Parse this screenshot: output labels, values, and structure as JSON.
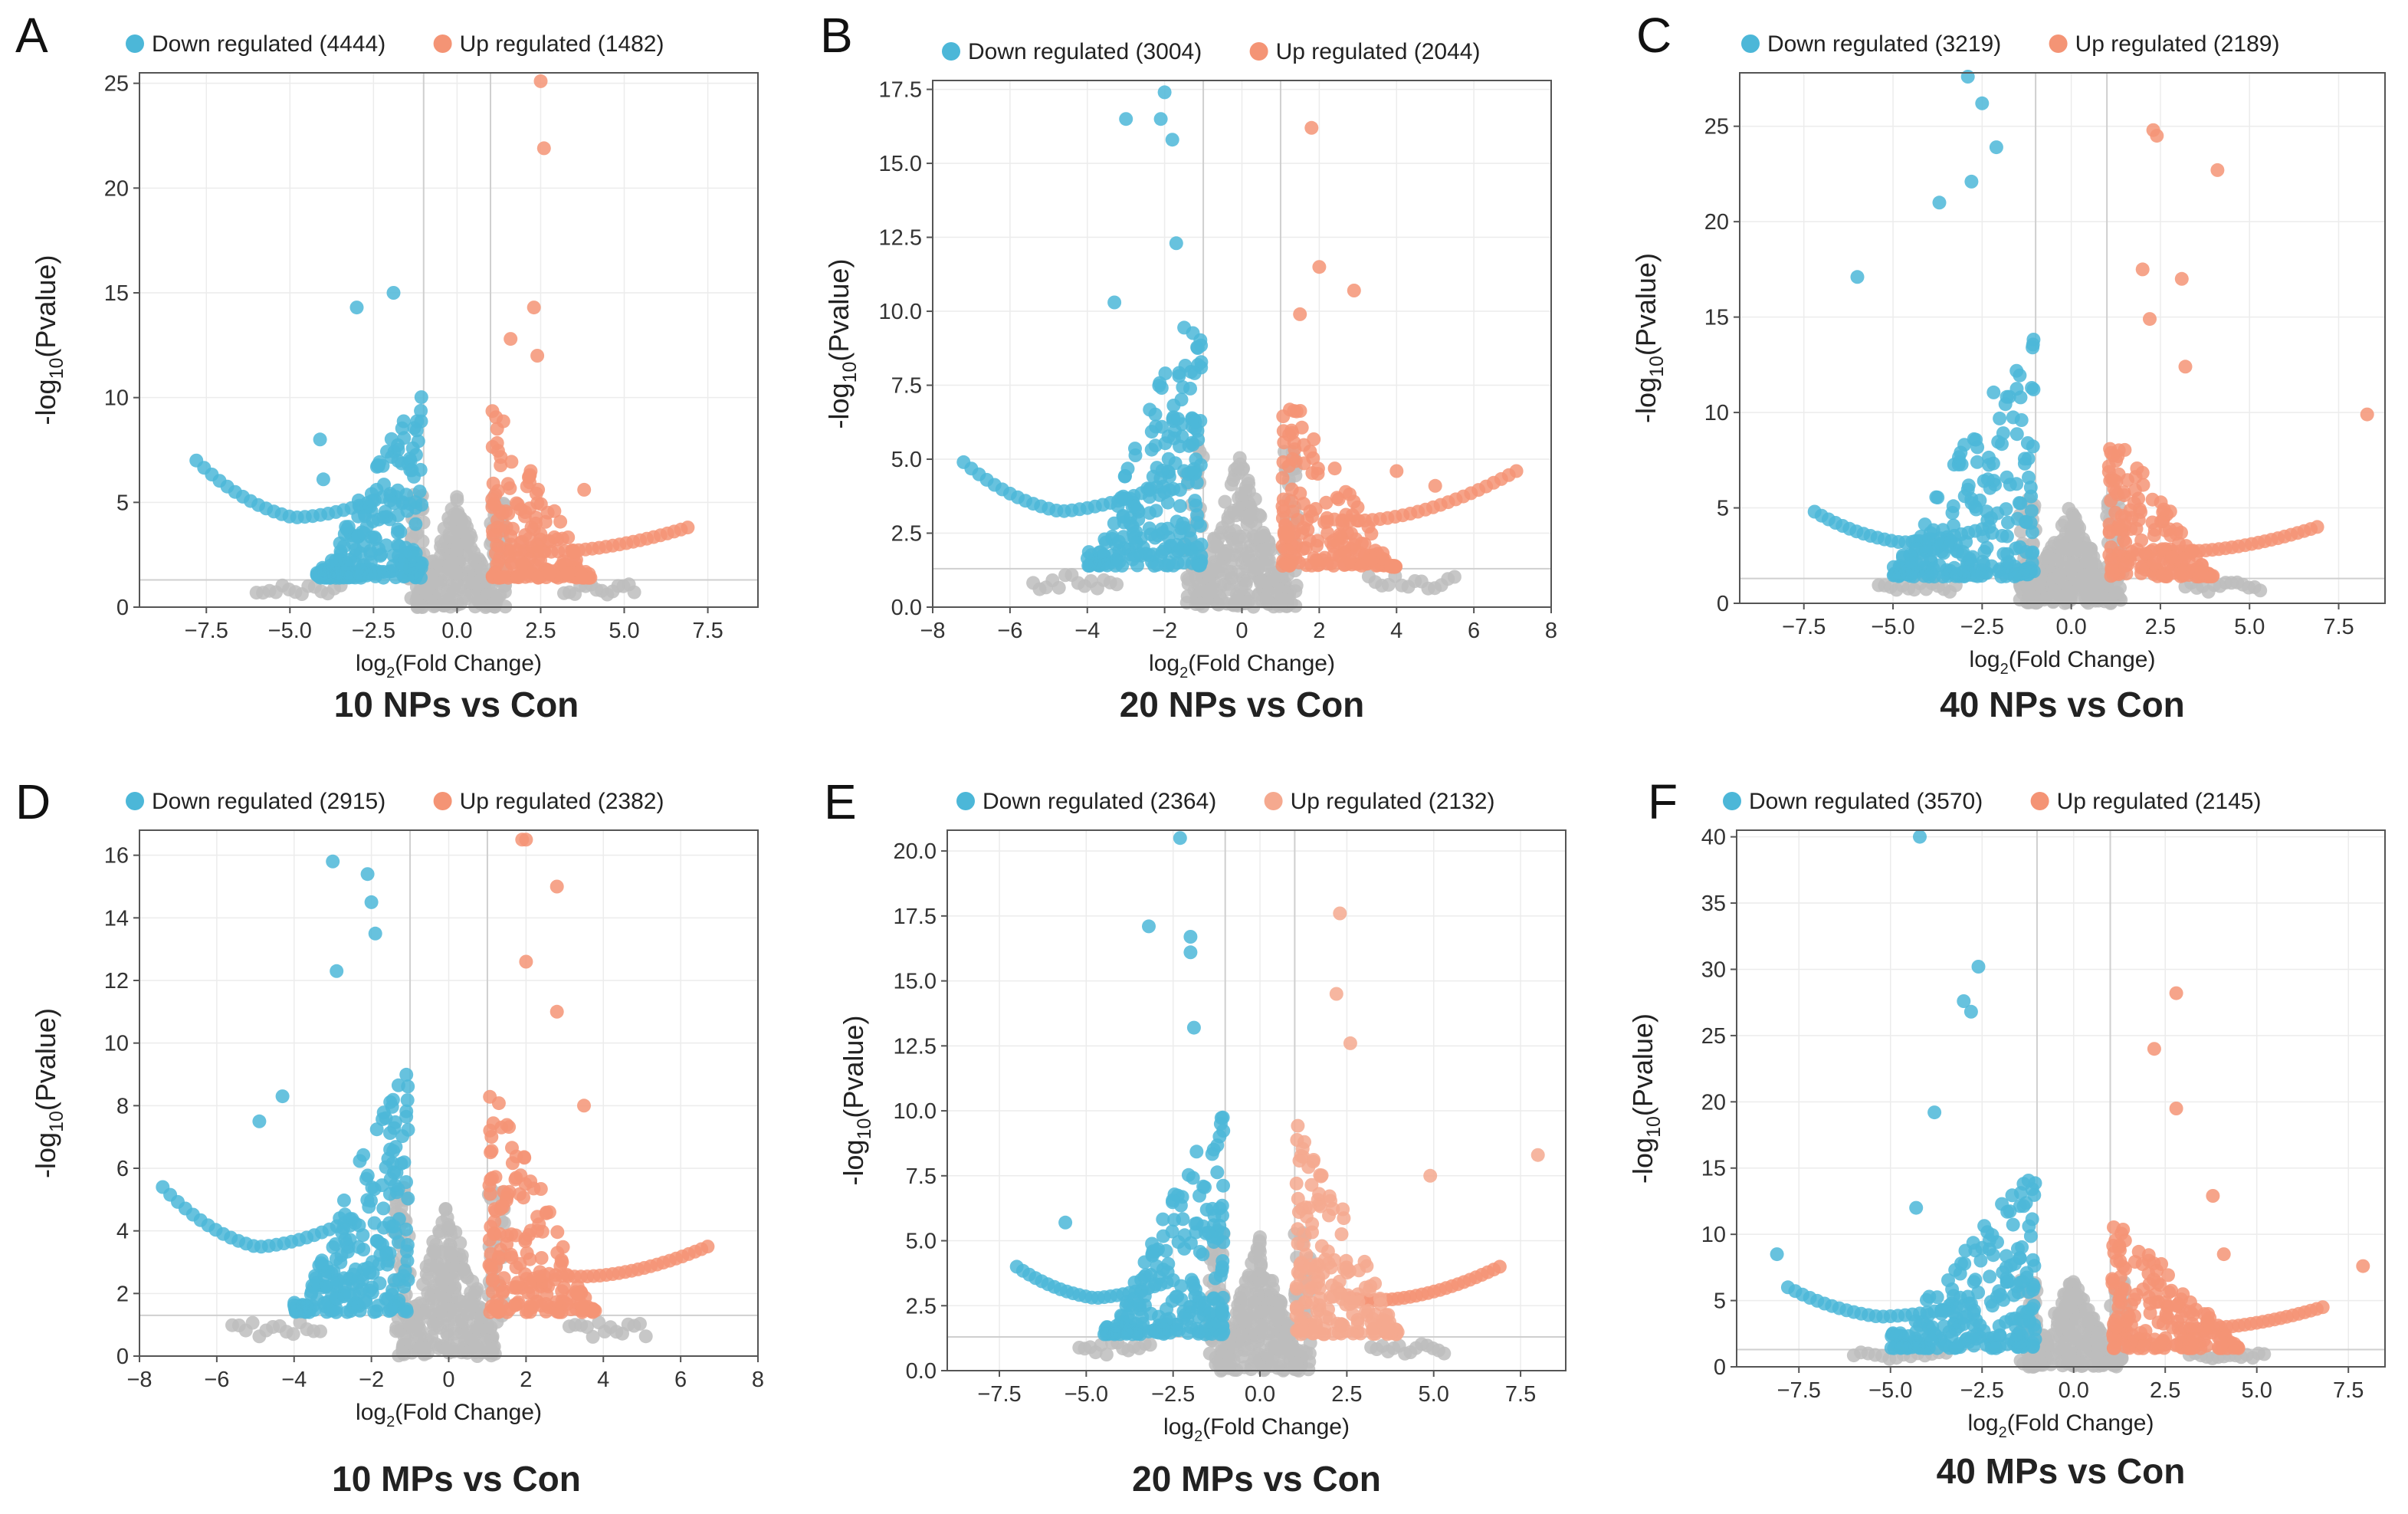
{
  "colors": {
    "down": "#4cb7d8",
    "up": "#f49475",
    "ns": "#bdbdbd"
  },
  "chart_data": [
    {
      "type": "scatter",
      "panel": "A",
      "caption": "10 NPs vs Con",
      "title": "",
      "xlabel": "log",
      "xlabel_sub": "2",
      "xlabel_tail": "(Fold Change)",
      "ylabel": "-log",
      "ylabel_sub": "10",
      "ylabel_tail": "(Pvalue)",
      "legend": [
        {
          "label": "Down regulated (4444)",
          "color": "#4cb7d8"
        },
        {
          "label": "Up regulated (1482)",
          "color": "#f49475"
        }
      ],
      "legend_position": "top",
      "xlim": [
        -9.5,
        9.0
      ],
      "ylim": [
        0,
        25.5
      ],
      "xticks": [
        -7.5,
        -5.0,
        -2.5,
        0.0,
        2.5,
        5.0,
        7.5
      ],
      "xtick_labels": [
        "-7.5",
        "-5.0",
        "-2.5",
        "0.0",
        "2.5",
        "5.0",
        "7.5"
      ],
      "yticks": [
        0,
        5,
        10,
        15,
        20,
        25
      ],
      "ytick_labels": [
        "0",
        "5",
        "10",
        "15",
        "20",
        "25"
      ],
      "fc_threshold": 1,
      "p_line": 1.3,
      "down": {
        "wing_from": -7.8,
        "wing_to": -2.0,
        "wing_max": 7,
        "cloud_top": 10.5,
        "cloud_xmin": -4.2
      },
      "up": {
        "wing_from": 1.8,
        "wing_to": 6.9,
        "wing_max": 3.8,
        "cloud_top": 9.5,
        "cloud_xmax": 4.0
      },
      "outliers": [
        [
          2.5,
          25.1,
          "up"
        ],
        [
          2.6,
          21.9,
          "up"
        ],
        [
          -1.9,
          15.0,
          "down"
        ],
        [
          -3.0,
          14.3,
          "down"
        ],
        [
          2.3,
          14.3,
          "up"
        ],
        [
          1.6,
          12.8,
          "up"
        ],
        [
          2.4,
          12.0,
          "up"
        ],
        [
          -4.1,
          8.0,
          "down"
        ],
        [
          -4.0,
          6.1,
          "down"
        ],
        [
          3.8,
          5.6,
          "up"
        ]
      ]
    },
    {
      "type": "scatter",
      "panel": "B",
      "caption": "20 NPs vs Con",
      "title": "",
      "xlabel": "log",
      "xlabel_sub": "2",
      "xlabel_tail": "(Fold Change)",
      "ylabel": "-log",
      "ylabel_sub": "10",
      "ylabel_tail": "(Pvalue)",
      "legend": [
        {
          "label": "Down regulated (3004)",
          "color": "#4cb7d8"
        },
        {
          "label": "Up regulated (2044)",
          "color": "#f49475"
        }
      ],
      "legend_position": "top",
      "xlim": [
        -8,
        8
      ],
      "ylim": [
        0,
        17.8
      ],
      "xticks": [
        -8,
        -6,
        -4,
        -2,
        0,
        2,
        4,
        6,
        8
      ],
      "xtick_labels": [
        "-8",
        "-6",
        "-4",
        "-2",
        "0",
        "2",
        "4",
        "6",
        "8"
      ],
      "yticks": [
        0,
        2.5,
        5.0,
        7.5,
        10.0,
        12.5,
        15.0,
        17.5
      ],
      "ytick_labels": [
        "0.0",
        "2.5",
        "5.0",
        "7.5",
        "10.0",
        "12.5",
        "15.0",
        "17.5"
      ],
      "fc_threshold": 1,
      "p_line": 1.3,
      "down": {
        "wing_from": -7.2,
        "wing_to": -2.2,
        "wing_max": 4.9,
        "cloud_top": 10.5,
        "cloud_xmin": -4.0
      },
      "up": {
        "wing_from": 2.2,
        "wing_to": 7.1,
        "wing_max": 4.6,
        "cloud_top": 7.5,
        "cloud_xmax": 4.0
      },
      "outliers": [
        [
          -2.0,
          17.4,
          "down"
        ],
        [
          -3.0,
          16.5,
          "down"
        ],
        [
          -2.1,
          16.5,
          "down"
        ],
        [
          -1.8,
          15.8,
          "down"
        ],
        [
          1.8,
          16.2,
          "up"
        ],
        [
          -1.7,
          12.3,
          "down"
        ],
        [
          2.0,
          11.5,
          "up"
        ],
        [
          2.9,
          10.7,
          "up"
        ],
        [
          1.5,
          9.9,
          "up"
        ],
        [
          -3.3,
          10.3,
          "down"
        ],
        [
          4.0,
          4.6,
          "up"
        ],
        [
          5.0,
          4.1,
          "up"
        ]
      ]
    },
    {
      "type": "scatter",
      "panel": "C",
      "caption": "40 NPs vs Con",
      "title": "",
      "xlabel": "log",
      "xlabel_sub": "2",
      "xlabel_tail": "(Fold Change)",
      "ylabel": "-log",
      "ylabel_sub": "10",
      "ylabel_tail": "(Pvalue)",
      "legend": [
        {
          "label": "Down regulated (3219)",
          "color": "#4cb7d8"
        },
        {
          "label": "Up regulated (2189)",
          "color": "#f49475"
        }
      ],
      "legend_position": "top",
      "xlim": [
        -9.3,
        8.8
      ],
      "ylim": [
        0,
        27.8
      ],
      "xticks": [
        -7.5,
        -5.0,
        -2.5,
        0.0,
        2.5,
        5.0,
        7.5
      ],
      "xtick_labels": [
        "-7.5",
        "-5.0",
        "-2.5",
        "0.0",
        "2.5",
        "5.0",
        "7.5"
      ],
      "yticks": [
        0,
        5,
        10,
        15,
        20,
        25
      ],
      "ytick_labels": [
        "0",
        "5",
        "10",
        "15",
        "20",
        "25"
      ],
      "fc_threshold": 1,
      "p_line": 1.3,
      "down": {
        "wing_from": -7.2,
        "wing_to": -2.3,
        "wing_max": 4.8,
        "cloud_top": 14.0,
        "cloud_xmin": -5.0
      },
      "up": {
        "wing_from": 2.3,
        "wing_to": 6.9,
        "wing_max": 4.0,
        "cloud_top": 9.0,
        "cloud_xmax": 4.0
      },
      "outliers": [
        [
          -2.9,
          27.6,
          "down"
        ],
        [
          -2.5,
          26.2,
          "down"
        ],
        [
          2.3,
          24.8,
          "up"
        ],
        [
          2.4,
          24.5,
          "up"
        ],
        [
          -2.1,
          23.9,
          "down"
        ],
        [
          4.1,
          22.7,
          "up"
        ],
        [
          -2.8,
          22.1,
          "down"
        ],
        [
          -3.7,
          21.0,
          "down"
        ],
        [
          -6.0,
          17.1,
          "down"
        ],
        [
          2.0,
          17.5,
          "up"
        ],
        [
          3.1,
          17.0,
          "up"
        ],
        [
          8.3,
          9.9,
          "up"
        ],
        [
          2.2,
          14.9,
          "up"
        ],
        [
          3.2,
          12.4,
          "up"
        ]
      ]
    },
    {
      "type": "scatter",
      "panel": "D",
      "caption": "10 MPs vs Con",
      "title": "",
      "xlabel": "log",
      "xlabel_sub": "2",
      "xlabel_tail": "(Fold Change)",
      "ylabel": "-log",
      "ylabel_sub": "10",
      "ylabel_tail": "(Pvalue)",
      "legend": [
        {
          "label": "Down regulated (2915)",
          "color": "#4cb7d8"
        },
        {
          "label": "Up regulated (2382)",
          "color": "#f49475"
        }
      ],
      "legend_position": "top",
      "xlim": [
        -8,
        8
      ],
      "ylim": [
        0,
        16.8
      ],
      "xticks": [
        -8,
        -6,
        -4,
        -2,
        0,
        2,
        4,
        6,
        8
      ],
      "xtick_labels": [
        "-8",
        "-6",
        "-4",
        "-2",
        "0",
        "2",
        "4",
        "6",
        "8"
      ],
      "yticks": [
        0,
        2,
        4,
        6,
        8,
        10,
        12,
        14,
        16
      ],
      "ytick_labels": [
        "0",
        "2",
        "4",
        "6",
        "8",
        "10",
        "12",
        "14",
        "16"
      ],
      "fc_threshold": 1,
      "p_line": 1.3,
      "down": {
        "wing_from": -7.4,
        "wing_to": -2.5,
        "wing_max": 5.4,
        "cloud_top": 9.5,
        "cloud_xmin": -4.0
      },
      "up": {
        "wing_from": 2.6,
        "wing_to": 6.7,
        "wing_max": 3.5,
        "cloud_top": 8.5,
        "cloud_xmax": 3.8
      },
      "outliers": [
        [
          1.9,
          16.5,
          "up"
        ],
        [
          2.0,
          16.5,
          "up"
        ],
        [
          -3.0,
          15.8,
          "down"
        ],
        [
          -2.1,
          15.4,
          "down"
        ],
        [
          2.8,
          15.0,
          "up"
        ],
        [
          -2.0,
          14.5,
          "down"
        ],
        [
          -1.9,
          13.5,
          "down"
        ],
        [
          -2.9,
          12.3,
          "down"
        ],
        [
          2.0,
          12.6,
          "up"
        ],
        [
          -4.3,
          8.3,
          "down"
        ],
        [
          -4.9,
          7.5,
          "down"
        ],
        [
          3.5,
          8.0,
          "up"
        ],
        [
          2.8,
          11.0,
          "up"
        ]
      ]
    },
    {
      "type": "scatter",
      "panel": "E",
      "caption": "20 MPs vs Con",
      "title": "",
      "xlabel": "log",
      "xlabel_sub": "2",
      "xlabel_tail": "(Fold Change)",
      "ylabel": "-log",
      "ylabel_sub": "10",
      "ylabel_tail": "(Pvalue)",
      "legend": [
        {
          "label": "Down regulated (2364)",
          "color": "#4cb7d8"
        },
        {
          "label": "Up regulated (2132)",
          "color": "#f5a98f"
        }
      ],
      "legend_position": "top",
      "xlim": [
        -9.0,
        8.8
      ],
      "ylim": [
        0,
        20.8
      ],
      "xticks": [
        -7.5,
        -5.0,
        -2.5,
        0.0,
        2.5,
        5.0,
        7.5
      ],
      "xtick_labels": [
        "-7.5",
        "-5.0",
        "-2.5",
        "0.0",
        "2.5",
        "5.0",
        "7.5"
      ],
      "yticks": [
        0,
        2.5,
        5.0,
        7.5,
        10.0,
        12.5,
        15.0,
        17.5,
        20.0
      ],
      "ytick_labels": [
        "0.0",
        "2.5",
        "5.0",
        "7.5",
        "10.0",
        "12.5",
        "15.0",
        "17.5",
        "20.0"
      ],
      "fc_threshold": 1,
      "p_line": 1.3,
      "down": {
        "wing_from": -7.0,
        "wing_to": -2.5,
        "wing_max": 4.0,
        "cloud_top": 10.0,
        "cloud_xmin": -4.5
      },
      "up": {
        "wing_from": 2.6,
        "wing_to": 6.9,
        "wing_max": 4.0,
        "cloud_top": 9.5,
        "cloud_xmax": 4.0
      },
      "outliers": [
        [
          -2.3,
          20.5,
          "down"
        ],
        [
          2.3,
          17.6,
          "up"
        ],
        [
          -3.2,
          17.1,
          "down"
        ],
        [
          -2.0,
          16.7,
          "down"
        ],
        [
          -2.0,
          16.1,
          "down"
        ],
        [
          2.2,
          14.5,
          "up"
        ],
        [
          -1.9,
          13.2,
          "down"
        ],
        [
          2.6,
          12.6,
          "up"
        ],
        [
          8.0,
          8.3,
          "up"
        ],
        [
          4.9,
          7.5,
          "up"
        ],
        [
          -5.6,
          5.7,
          "down"
        ]
      ]
    },
    {
      "type": "scatter",
      "panel": "F",
      "caption": "40 MPs vs Con",
      "title": "",
      "xlabel": "log",
      "xlabel_sub": "2",
      "xlabel_tail": "(Fold Change)",
      "ylabel": "-log",
      "ylabel_sub": "10",
      "ylabel_tail": "(Pvalue)",
      "legend": [
        {
          "label": "Down regulated (3570)",
          "color": "#4cb7d8"
        },
        {
          "label": "Up regulated (2145)",
          "color": "#f49475"
        }
      ],
      "legend_position": "top",
      "xlim": [
        -9.2,
        8.5
      ],
      "ylim": [
        0,
        40.5
      ],
      "xticks": [
        -7.5,
        -5.0,
        -2.5,
        0.0,
        2.5,
        5.0,
        7.5
      ],
      "xtick_labels": [
        "-7.5",
        "-5.0",
        "-2.5",
        "0.0",
        "2.5",
        "5.0",
        "7.5"
      ],
      "yticks": [
        0,
        5,
        10,
        15,
        20,
        25,
        30,
        35,
        40
      ],
      "ytick_labels": [
        "0",
        "5",
        "10",
        "15",
        "20",
        "25",
        "30",
        "35",
        "40"
      ],
      "fc_threshold": 1,
      "p_line": 1.3,
      "down": {
        "wing_from": -7.8,
        "wing_to": -2.8,
        "wing_max": 6.0,
        "cloud_top": 15.0,
        "cloud_xmin": -5.0
      },
      "up": {
        "wing_from": 2.7,
        "wing_to": 6.8,
        "wing_max": 4.5,
        "cloud_top": 11.0,
        "cloud_xmax": 4.5
      },
      "outliers": [
        [
          -4.2,
          40.0,
          "down"
        ],
        [
          -2.6,
          30.2,
          "down"
        ],
        [
          2.8,
          28.2,
          "up"
        ],
        [
          -3.0,
          27.6,
          "down"
        ],
        [
          -2.8,
          26.8,
          "down"
        ],
        [
          2.2,
          24.0,
          "up"
        ],
        [
          -3.8,
          19.2,
          "down"
        ],
        [
          2.8,
          19.5,
          "up"
        ],
        [
          -8.1,
          8.5,
          "down"
        ],
        [
          7.9,
          7.6,
          "up"
        ],
        [
          3.8,
          12.9,
          "up"
        ],
        [
          4.1,
          8.5,
          "up"
        ],
        [
          -4.3,
          12.0,
          "down"
        ]
      ]
    }
  ]
}
